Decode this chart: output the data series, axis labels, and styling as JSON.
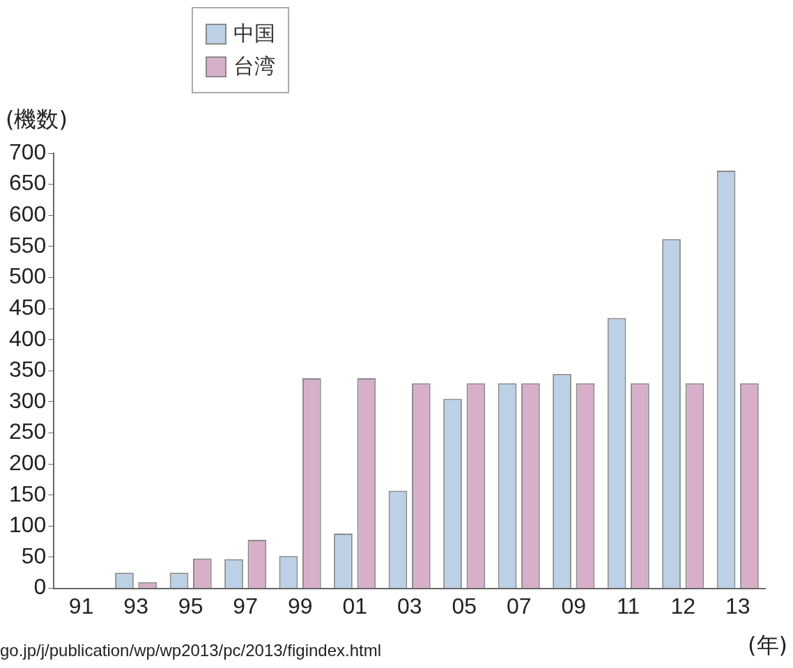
{
  "chart_data": {
    "type": "bar",
    "ylabel": "(機数)",
    "xlabel": "(年)",
    "categories": [
      "91",
      "93",
      "95",
      "97",
      "99",
      "01",
      "03",
      "05",
      "07",
      "09",
      "11",
      "12",
      "13"
    ],
    "series": [
      {
        "name": "中国",
        "color": "#bcd0e6",
        "values": [
          0,
          25,
          25,
          47,
          52,
          88,
          157,
          305,
          330,
          345,
          435,
          562,
          672
        ]
      },
      {
        "name": "台湾",
        "color": "#d8afca",
        "values": [
          0,
          10,
          48,
          78,
          338,
          338,
          330,
          330,
          330,
          330,
          330,
          330,
          330
        ]
      }
    ],
    "ylim": [
      0,
      700
    ],
    "yticks": [
      0,
      50,
      100,
      150,
      200,
      250,
      300,
      350,
      400,
      450,
      500,
      550,
      600,
      650,
      700
    ],
    "legend": "top",
    "annotations": [
      "go.jp/j/publication/wp/wp2013/pc/2013/figindex.html"
    ]
  }
}
